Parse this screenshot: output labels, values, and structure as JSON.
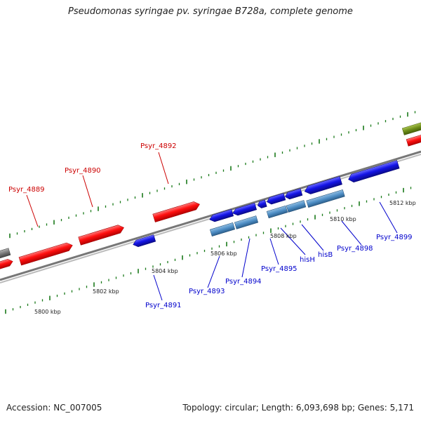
{
  "title": "Pseudomonas syringae pv. syringae B728a, complete genome",
  "footer": {
    "accession": "Accession: NC_007005",
    "summary": "Topology: circular; Length: 6,093,698 bp; Genes: 5,171"
  },
  "colors": {
    "plus_strand": "#ff1010",
    "minus_strand": "#1414e6",
    "minus_light": "#4f8fc6",
    "plus_olive": "#6f8f1a",
    "gray_gene": "#777777",
    "backbone": "#8a8a8a",
    "tick": "#1a7a1a",
    "plus_label": "#cc0000",
    "minus_label": "#0000cc"
  },
  "scale_labels": [
    "5800 kbp",
    "5802 kbp",
    "5804 kbp",
    "5806 kbp",
    "5808 kbp",
    "5810 kbp",
    "5812 kbp"
  ],
  "gene_labels": {
    "plus": [
      "Psyr_4889",
      "Psyr_4890",
      "Psyr_4892"
    ],
    "minus": [
      "Psyr_4891",
      "Psyr_4893",
      "Psyr_4894",
      "Psyr_4895",
      "hisH",
      "hisB",
      "Psyr_4898",
      "Psyr_4899"
    ]
  }
}
